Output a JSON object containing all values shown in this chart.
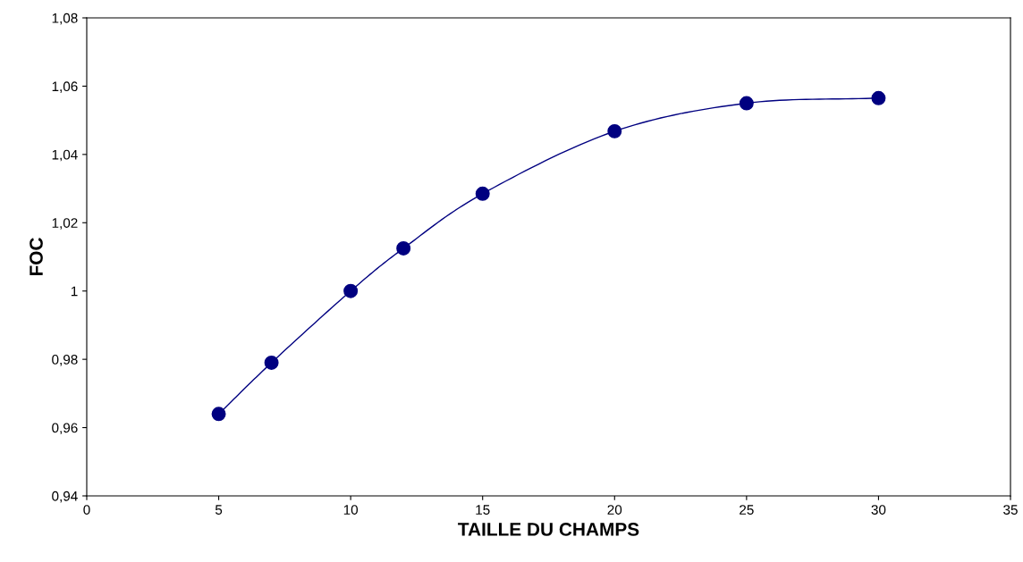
{
  "chart_data": {
    "type": "line",
    "xlabel": "TAILLE DU CHAMPS",
    "ylabel": "FOC",
    "x": [
      5,
      7,
      10,
      12,
      15,
      20,
      25,
      30
    ],
    "series": [
      {
        "color": "#000080",
        "values": [
          0.964,
          0.979,
          1.0,
          1.0125,
          1.0285,
          1.0468,
          1.055,
          1.0565
        ]
      }
    ],
    "xlim": [
      0,
      35
    ],
    "xticks": [
      0,
      5,
      10,
      15,
      20,
      25,
      30,
      35
    ],
    "ylim": [
      0.94,
      1.08
    ],
    "yticks": [
      {
        "value": 0.94,
        "label": "0,94"
      },
      {
        "value": 0.96,
        "label": "0,96"
      },
      {
        "value": 0.98,
        "label": "0,98"
      },
      {
        "value": 1,
        "label": "1"
      },
      {
        "value": 1.02,
        "label": "1,02"
      },
      {
        "value": 1.04,
        "label": "1,04"
      },
      {
        "value": 1.06,
        "label": "1,06"
      },
      {
        "value": 1.08,
        "label": "1,08"
      }
    ],
    "grid": false,
    "legend": false,
    "marker": "circle",
    "line_style": "solid"
  }
}
